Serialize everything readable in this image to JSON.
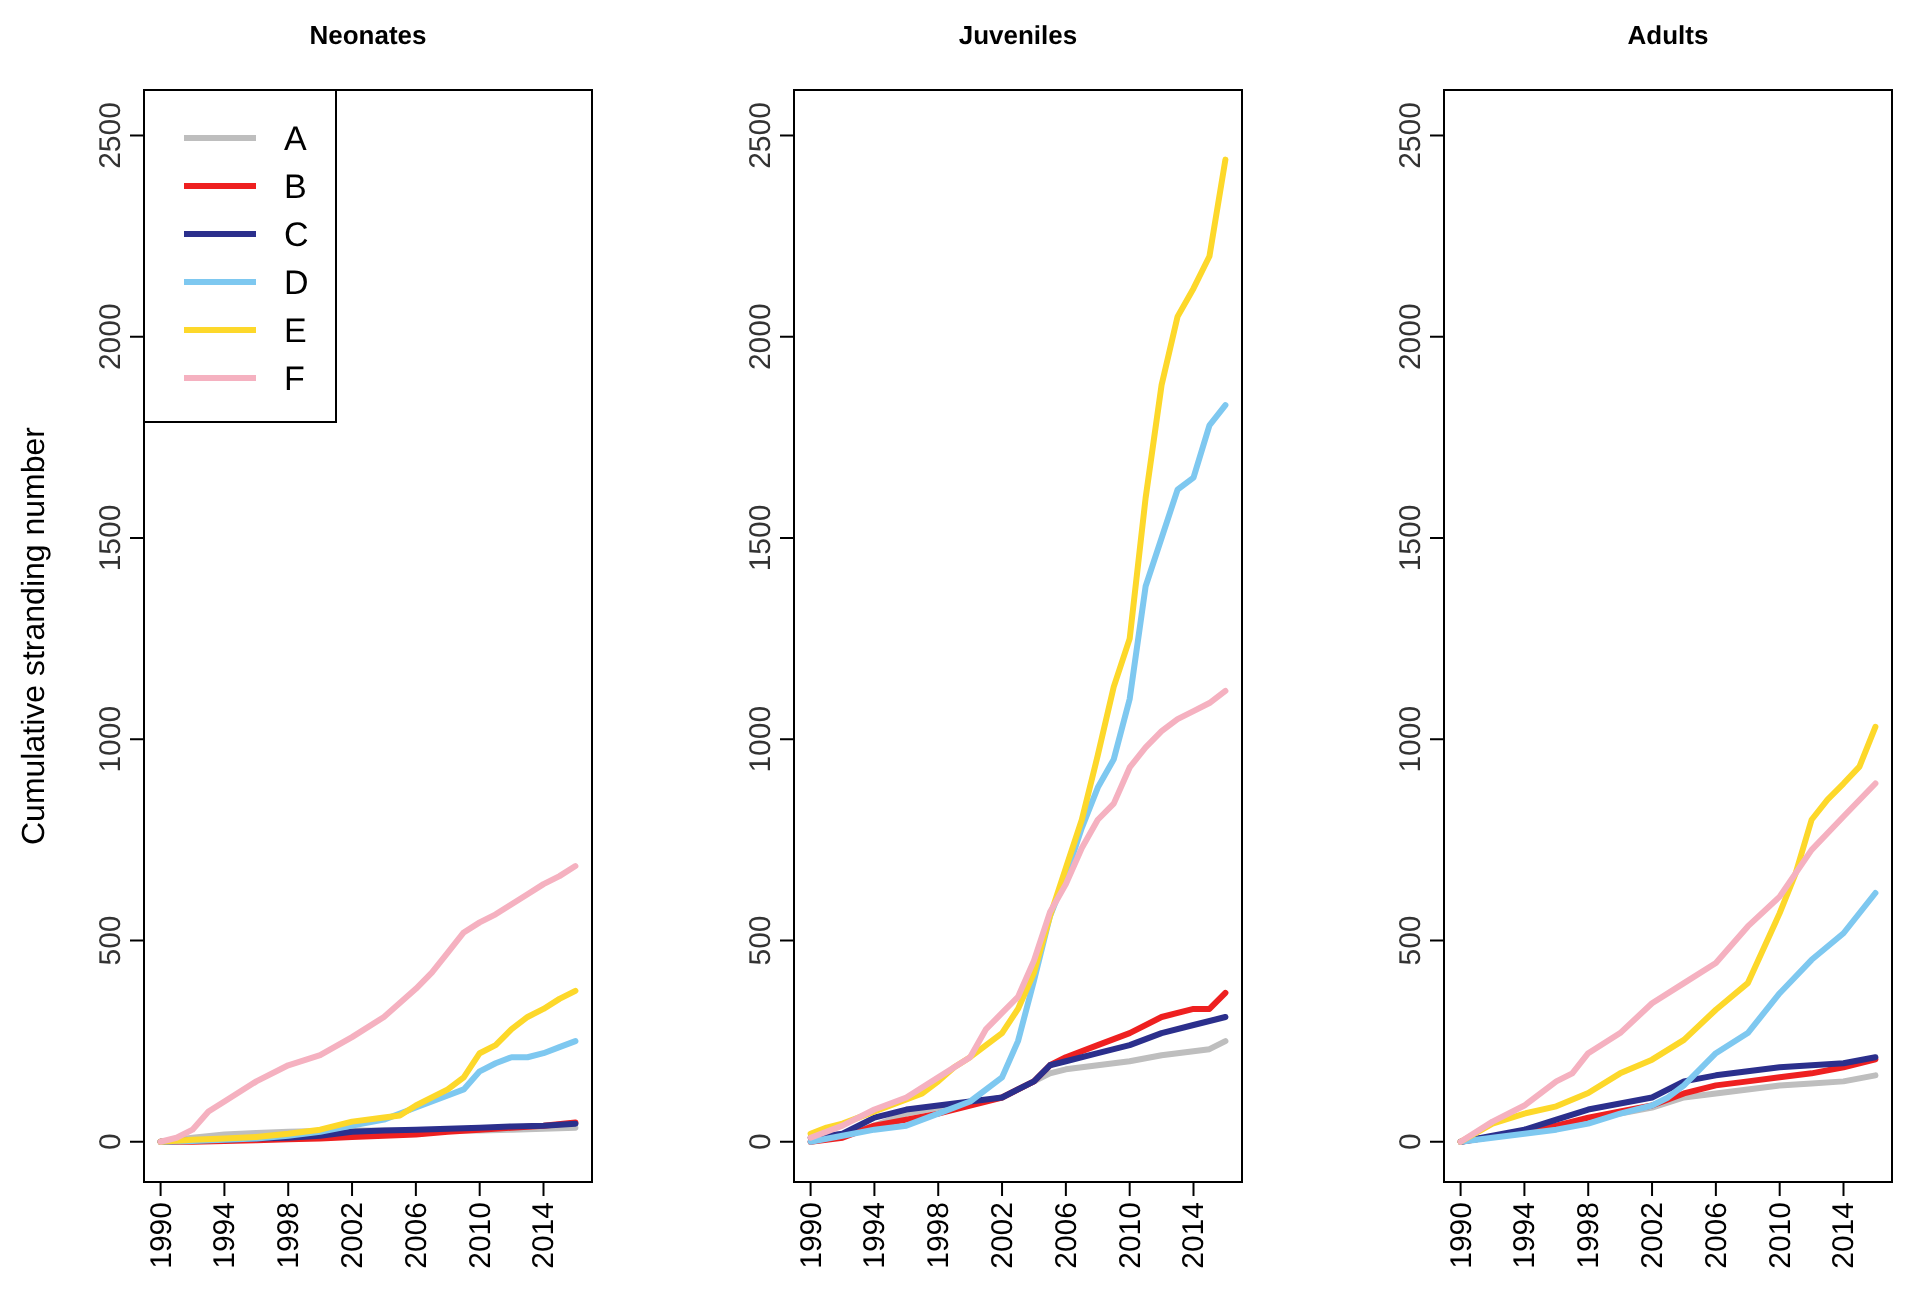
{
  "chart_data": [
    {
      "type": "line",
      "title": "Neonates",
      "ylabel": "Cumulative stranding number",
      "xlim": [
        1988.96,
        2017.04
      ],
      "ylim": [
        -100,
        2613
      ],
      "xticks": [
        1990,
        1994,
        1998,
        2002,
        2006,
        2010,
        2014
      ],
      "yticks": [
        0,
        500,
        1000,
        1500,
        2000,
        2500
      ],
      "legend": "top left",
      "series": [
        {
          "name": "A",
          "color": "#bebebe",
          "x": [
            1990,
            1992,
            1994,
            1996,
            1998,
            2000,
            2002,
            2004,
            2006,
            2008,
            2010,
            2012,
            2014,
            2016
          ],
          "values": [
            0,
            10,
            18,
            22,
            25,
            27,
            28,
            28,
            28,
            28,
            28,
            30,
            32,
            35
          ]
        },
        {
          "name": "B",
          "color": "#ee2020",
          "x": [
            1990,
            1992,
            1994,
            1996,
            1998,
            2000,
            2002,
            2004,
            2006,
            2008,
            2010,
            2012,
            2014,
            2016
          ],
          "values": [
            0,
            0,
            2,
            4,
            6,
            8,
            12,
            15,
            18,
            25,
            30,
            35,
            40,
            48
          ]
        },
        {
          "name": "C",
          "color": "#2b2f8c",
          "x": [
            1990,
            1992,
            1994,
            1996,
            1998,
            2000,
            2002,
            2004,
            2006,
            2008,
            2010,
            2012,
            2014,
            2016
          ],
          "values": [
            0,
            3,
            5,
            8,
            10,
            15,
            25,
            28,
            30,
            32,
            35,
            38,
            40,
            45
          ]
        },
        {
          "name": "D",
          "color": "#7ec8f0",
          "x": [
            1990,
            1992,
            1994,
            1996,
            1998,
            2000,
            2002,
            2004,
            2006,
            2008,
            2009,
            2010,
            2011,
            2012,
            2013,
            2014,
            2015,
            2016
          ],
          "values": [
            0,
            2,
            5,
            8,
            15,
            25,
            40,
            55,
            85,
            115,
            130,
            175,
            195,
            210,
            210,
            220,
            235,
            250
          ]
        },
        {
          "name": "E",
          "color": "#fdd82a",
          "x": [
            1990,
            1992,
            1994,
            1996,
            1998,
            2000,
            2002,
            2004,
            2005,
            2006,
            2008,
            2009,
            2010,
            2011,
            2012,
            2013,
            2014,
            2015,
            2016
          ],
          "values": [
            0,
            5,
            8,
            12,
            20,
            30,
            50,
            60,
            65,
            90,
            130,
            160,
            220,
            240,
            280,
            310,
            330,
            355,
            375
          ]
        },
        {
          "name": "F",
          "color": "#f5b1c0",
          "x": [
            1990,
            1991,
            1992,
            1993,
            1994,
            1996,
            1998,
            2000,
            2002,
            2004,
            2006,
            2007,
            2008,
            2009,
            2010,
            2011,
            2012,
            2013,
            2014,
            2015,
            2016
          ],
          "values": [
            0,
            10,
            30,
            75,
            100,
            150,
            190,
            215,
            260,
            310,
            380,
            420,
            470,
            520,
            545,
            565,
            590,
            615,
            640,
            660,
            685
          ]
        }
      ]
    },
    {
      "type": "line",
      "title": "Juveniles",
      "xlim": [
        1988.96,
        2017.04
      ],
      "ylim": [
        -100,
        2613
      ],
      "xticks": [
        1990,
        1994,
        1998,
        2002,
        2006,
        2010,
        2014
      ],
      "yticks": [
        0,
        500,
        1000,
        1500,
        2000,
        2500
      ],
      "series": [
        {
          "color": "#bebebe",
          "x": [
            1990,
            1992,
            1994,
            1996,
            1998,
            2000,
            2002,
            2004,
            2005,
            2006,
            2008,
            2010,
            2012,
            2014,
            2015,
            2016
          ],
          "values": [
            0,
            15,
            40,
            70,
            85,
            95,
            110,
            150,
            170,
            180,
            190,
            200,
            215,
            225,
            230,
            250
          ]
        },
        {
          "color": "#ee2020",
          "x": [
            1990,
            1992,
            1994,
            1996,
            1998,
            2000,
            2002,
            2004,
            2005,
            2006,
            2008,
            2010,
            2012,
            2014,
            2015,
            2016
          ],
          "values": [
            0,
            10,
            40,
            55,
            70,
            90,
            110,
            150,
            190,
            210,
            240,
            270,
            310,
            330,
            330,
            370
          ]
        },
        {
          "color": "#2b2f8c",
          "x": [
            1990,
            1992,
            1994,
            1996,
            1998,
            2000,
            2002,
            2004,
            2005,
            2006,
            2008,
            2010,
            2012,
            2014,
            2016
          ],
          "values": [
            10,
            20,
            60,
            80,
            90,
            100,
            110,
            150,
            190,
            200,
            220,
            240,
            270,
            290,
            310
          ]
        },
        {
          "color": "#7ec8f0",
          "x": [
            1990,
            1992,
            1994,
            1996,
            1998,
            2000,
            2002,
            2003,
            2004,
            2005,
            2006,
            2007,
            2008,
            2009,
            2010,
            2011,
            2012,
            2013,
            2014,
            2015,
            2016
          ],
          "values": [
            0,
            15,
            30,
            40,
            70,
            100,
            160,
            250,
            400,
            560,
            660,
            780,
            880,
            950,
            1100,
            1380,
            1500,
            1620,
            1650,
            1780,
            1830
          ]
        },
        {
          "color": "#fdd82a",
          "x": [
            1990,
            1991,
            1992,
            1993,
            1994,
            1995,
            1996,
            1997,
            1998,
            1999,
            2000,
            2001,
            2002,
            2003,
            2004,
            2005,
            2006,
            2007,
            2008,
            2009,
            2010,
            2011,
            2012,
            2013,
            2014,
            2015,
            2016
          ],
          "values": [
            20,
            35,
            45,
            60,
            75,
            90,
            105,
            120,
            150,
            185,
            210,
            240,
            270,
            330,
            420,
            560,
            680,
            800,
            960,
            1130,
            1250,
            1600,
            1880,
            2050,
            2120,
            2200,
            2440
          ]
        },
        {
          "color": "#f5b1c0",
          "x": [
            1990,
            1992,
            1994,
            1996,
            1998,
            2000,
            2001,
            2002,
            2003,
            2004,
            2005,
            2006,
            2007,
            2008,
            2009,
            2010,
            2011,
            2012,
            2013,
            2014,
            2015,
            2016
          ],
          "values": [
            10,
            40,
            80,
            110,
            160,
            210,
            280,
            320,
            360,
            450,
            570,
            640,
            730,
            800,
            840,
            930,
            980,
            1020,
            1050,
            1070,
            1090,
            1120
          ]
        }
      ]
    },
    {
      "type": "line",
      "title": "Adults",
      "xlim": [
        1988.96,
        2017.04
      ],
      "ylim": [
        -100,
        2613
      ],
      "xticks": [
        1990,
        1994,
        1998,
        2002,
        2006,
        2010,
        2014
      ],
      "yticks": [
        0,
        500,
        1000,
        1500,
        2000,
        2500
      ],
      "series": [
        {
          "color": "#bebebe",
          "x": [
            1990,
            1994,
            1998,
            2002,
            2004,
            2006,
            2008,
            2010,
            2012,
            2014,
            2016
          ],
          "values": [
            0,
            25,
            55,
            85,
            110,
            120,
            130,
            140,
            145,
            150,
            165
          ]
        },
        {
          "color": "#ee2020",
          "x": [
            1990,
            1994,
            1996,
            1998,
            2000,
            2002,
            2004,
            2006,
            2008,
            2010,
            2012,
            2014,
            2016
          ],
          "values": [
            0,
            25,
            40,
            60,
            75,
            90,
            120,
            140,
            150,
            160,
            170,
            185,
            205
          ]
        },
        {
          "color": "#2b2f8c",
          "x": [
            1990,
            1994,
            1996,
            1998,
            2000,
            2002,
            2004,
            2006,
            2008,
            2010,
            2012,
            2014,
            2016
          ],
          "values": [
            0,
            30,
            55,
            80,
            95,
            110,
            150,
            165,
            175,
            185,
            190,
            195,
            210
          ]
        },
        {
          "color": "#7ec8f0",
          "x": [
            1990,
            1994,
            1996,
            1998,
            2000,
            2002,
            2003,
            2004,
            2006,
            2008,
            2010,
            2012,
            2014,
            2016
          ],
          "values": [
            0,
            20,
            30,
            45,
            70,
            90,
            110,
            140,
            220,
            270,
            369,
            452,
            518,
            618
          ]
        },
        {
          "color": "#fdd82a",
          "x": [
            1990,
            1992,
            1994,
            1996,
            1998,
            2000,
            2002,
            2004,
            2006,
            2008,
            2010,
            2011,
            2012,
            2013,
            2014,
            2015,
            2016
          ],
          "values": [
            0,
            45,
            70,
            88,
            121,
            170,
            204,
            253,
            328,
            394,
            568,
            667,
            800,
            850,
            890,
            932,
            1031
          ]
        },
        {
          "color": "#f5b1c0",
          "x": [
            1990,
            1992,
            1994,
            1996,
            1997,
            1998,
            2000,
            2002,
            2004,
            2006,
            2008,
            2010,
            2012,
            2014,
            2016
          ],
          "values": [
            0,
            50,
            90,
            150,
            170,
            220,
            270,
            344,
            394,
            444,
            535,
            609,
            725,
            808,
            890
          ]
        }
      ]
    }
  ]
}
